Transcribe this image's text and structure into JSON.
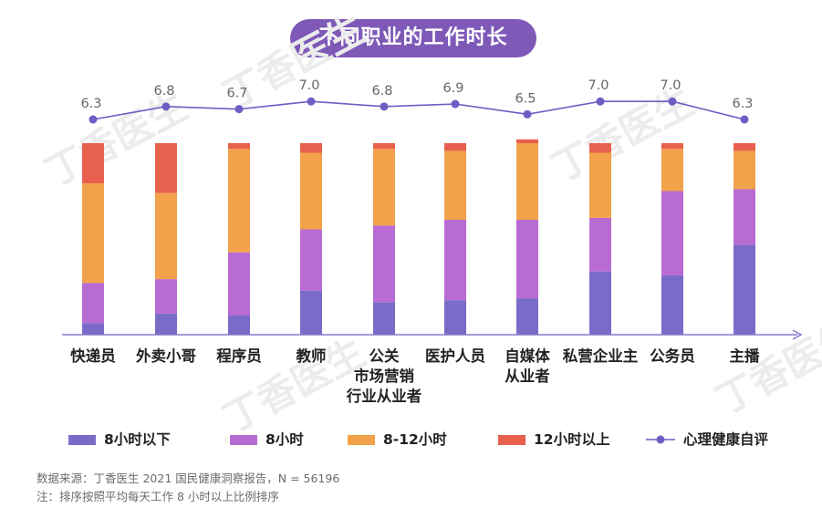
{
  "chart_data": {
    "type": "bar",
    "stacked": true,
    "title": "不同职业的工作时长",
    "categories": [
      "快递员",
      "外卖小哥",
      "程序员",
      "教师",
      "公关\n市场营销\n行业从业者",
      "医护人员",
      "自媒体\n从业者",
      "私营企业主",
      "公务员",
      "主播"
    ],
    "series": [
      {
        "name": "8小时以下",
        "color": "#7b6bc9",
        "values": [
          6,
          11,
          10,
          23,
          17,
          18,
          19,
          33,
          31,
          47
        ]
      },
      {
        "name": "8小时",
        "color": "#b86cd3",
        "values": [
          21,
          18,
          33,
          32,
          40,
          42,
          41,
          28,
          44,
          29
        ]
      },
      {
        "name": "8-12小时",
        "color": "#f2a24a",
        "values": [
          52,
          45,
          54,
          40,
          40,
          36,
          40,
          34,
          22,
          20
        ]
      },
      {
        "name": "12小时以上",
        "color": "#e8604e",
        "values": [
          21,
          26,
          3,
          5,
          3,
          4,
          2,
          5,
          3,
          4
        ]
      }
    ],
    "line_series": {
      "name": "心理健康自评",
      "color": "#6b5fc4",
      "values": [
        6.3,
        6.8,
        6.7,
        7.0,
        6.8,
        6.9,
        6.5,
        7.0,
        7.0,
        6.3
      ],
      "labels": [
        "6.3",
        "6.8",
        "6.7",
        "7.0",
        "6.8",
        "6.9",
        "6.5",
        "7.0",
        "7.0",
        "6.3"
      ]
    },
    "ylim": [
      0,
      100
    ],
    "line_ylim": [
      5.6,
      7.2
    ],
    "legend": [
      "8小时以下",
      "8小时",
      "8-12小时",
      "12小时以上",
      "心理健康自评"
    ],
    "legend_position": "bottom"
  },
  "footnotes": {
    "source": "数据来源：丁香医生 2021 国民健康洞察报告，N = 56196",
    "note": "注：排序按照平均每天工作 8 小时以上比例排序"
  },
  "watermark": {
    "text": "丁香医生"
  }
}
